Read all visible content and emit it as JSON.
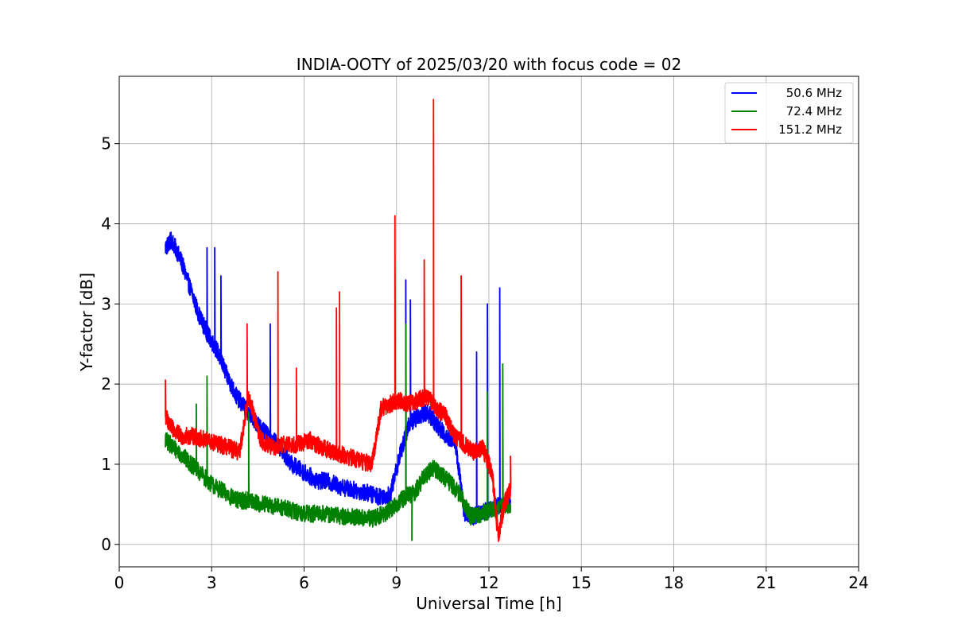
{
  "chart_data": {
    "type": "line",
    "title": "INDIA-OOTY of 2025/03/20 with focus code = 02",
    "xlabel": "Universal Time [h]",
    "ylabel": "Y-factor [dB]",
    "xlim": [
      0,
      24
    ],
    "ylim": [
      -0.28,
      5.84
    ],
    "x_ticks": [
      "0",
      "3",
      "6",
      "9",
      "12",
      "15",
      "18",
      "21",
      "24"
    ],
    "y_ticks": [
      "0",
      "1",
      "2",
      "3",
      "4",
      "5"
    ],
    "grid": true,
    "legend_position": "top-right",
    "series": [
      {
        "name": "50.6 MHz",
        "color": "#0000ff",
        "x": [
          1.5,
          1.7,
          2.0,
          2.3,
          2.6,
          2.9,
          3.2,
          3.5,
          3.8,
          4.1,
          4.4,
          4.7,
          5.0,
          5.3,
          5.6,
          6.0,
          6.4,
          6.8,
          7.2,
          7.6,
          8.0,
          8.4,
          8.8,
          9.1,
          9.4,
          9.7,
          10.0,
          10.3,
          10.6,
          10.9,
          11.2,
          11.5,
          11.8,
          12.1,
          12.4,
          12.7
        ],
        "y": [
          3.7,
          3.8,
          3.55,
          3.2,
          2.85,
          2.6,
          2.4,
          2.1,
          1.85,
          1.7,
          1.55,
          1.4,
          1.3,
          1.15,
          1.0,
          0.9,
          0.8,
          0.78,
          0.72,
          0.68,
          0.65,
          0.6,
          0.62,
          1.1,
          1.5,
          1.6,
          1.65,
          1.5,
          1.35,
          1.3,
          0.4,
          0.35,
          0.4,
          0.45,
          0.5,
          0.55
        ],
        "spikes": [
          [
            2.85,
            3.7
          ],
          [
            3.1,
            3.7
          ],
          [
            3.3,
            3.35
          ],
          [
            4.9,
            2.75
          ],
          [
            9.3,
            3.3
          ],
          [
            9.45,
            3.05
          ],
          [
            11.6,
            2.4
          ],
          [
            11.95,
            3.0
          ],
          [
            12.35,
            3.2
          ]
        ]
      },
      {
        "name": "72.4 MHz",
        "color": "#008000",
        "x": [
          1.5,
          1.8,
          2.2,
          2.6,
          3.0,
          3.4,
          3.8,
          4.2,
          4.6,
          5.0,
          5.4,
          5.8,
          6.2,
          6.6,
          7.0,
          7.4,
          7.8,
          8.2,
          8.6,
          9.0,
          9.3,
          9.6,
          9.9,
          10.2,
          10.5,
          10.8,
          11.1,
          11.4,
          11.7,
          12.0,
          12.3,
          12.7
        ],
        "y": [
          1.3,
          1.2,
          1.05,
          0.9,
          0.75,
          0.65,
          0.55,
          0.55,
          0.5,
          0.48,
          0.45,
          0.4,
          0.38,
          0.38,
          0.36,
          0.35,
          0.33,
          0.32,
          0.38,
          0.5,
          0.6,
          0.65,
          0.85,
          0.95,
          0.85,
          0.75,
          0.6,
          0.35,
          0.38,
          0.42,
          0.45,
          0.5
        ],
        "spikes": [
          [
            2.5,
            1.75
          ],
          [
            2.85,
            2.1
          ],
          [
            4.2,
            1.65
          ],
          [
            9.3,
            2.75
          ],
          [
            9.5,
            0.05
          ],
          [
            11.95,
            1.9
          ],
          [
            12.45,
            2.25
          ]
        ]
      },
      {
        "name": "151.2 MHz",
        "color": "#ff0000",
        "x": [
          1.5,
          1.7,
          2.0,
          2.4,
          2.8,
          3.2,
          3.6,
          3.9,
          4.2,
          4.6,
          5.0,
          5.4,
          5.8,
          6.2,
          6.6,
          7.0,
          7.4,
          7.8,
          8.2,
          8.5,
          8.8,
          9.1,
          9.4,
          9.7,
          10.0,
          10.3,
          10.6,
          10.9,
          11.2,
          11.5,
          11.8,
          12.1,
          12.3,
          12.5,
          12.7
        ],
        "y": [
          1.6,
          1.45,
          1.35,
          1.35,
          1.3,
          1.25,
          1.2,
          1.15,
          1.85,
          1.3,
          1.2,
          1.25,
          1.25,
          1.3,
          1.2,
          1.15,
          1.1,
          1.05,
          1.0,
          1.7,
          1.75,
          1.8,
          1.75,
          1.8,
          1.85,
          1.7,
          1.6,
          1.35,
          1.25,
          1.15,
          1.2,
          0.9,
          0.1,
          0.5,
          0.7
        ],
        "spikes": [
          [
            1.5,
            2.05
          ],
          [
            4.15,
            2.75
          ],
          [
            5.15,
            3.4
          ],
          [
            5.75,
            2.2
          ],
          [
            7.05,
            2.95
          ],
          [
            7.15,
            3.15
          ],
          [
            8.95,
            4.1
          ],
          [
            9.9,
            3.55
          ],
          [
            10.2,
            5.55
          ],
          [
            11.1,
            3.35
          ],
          [
            12.7,
            1.1
          ]
        ]
      }
    ]
  }
}
